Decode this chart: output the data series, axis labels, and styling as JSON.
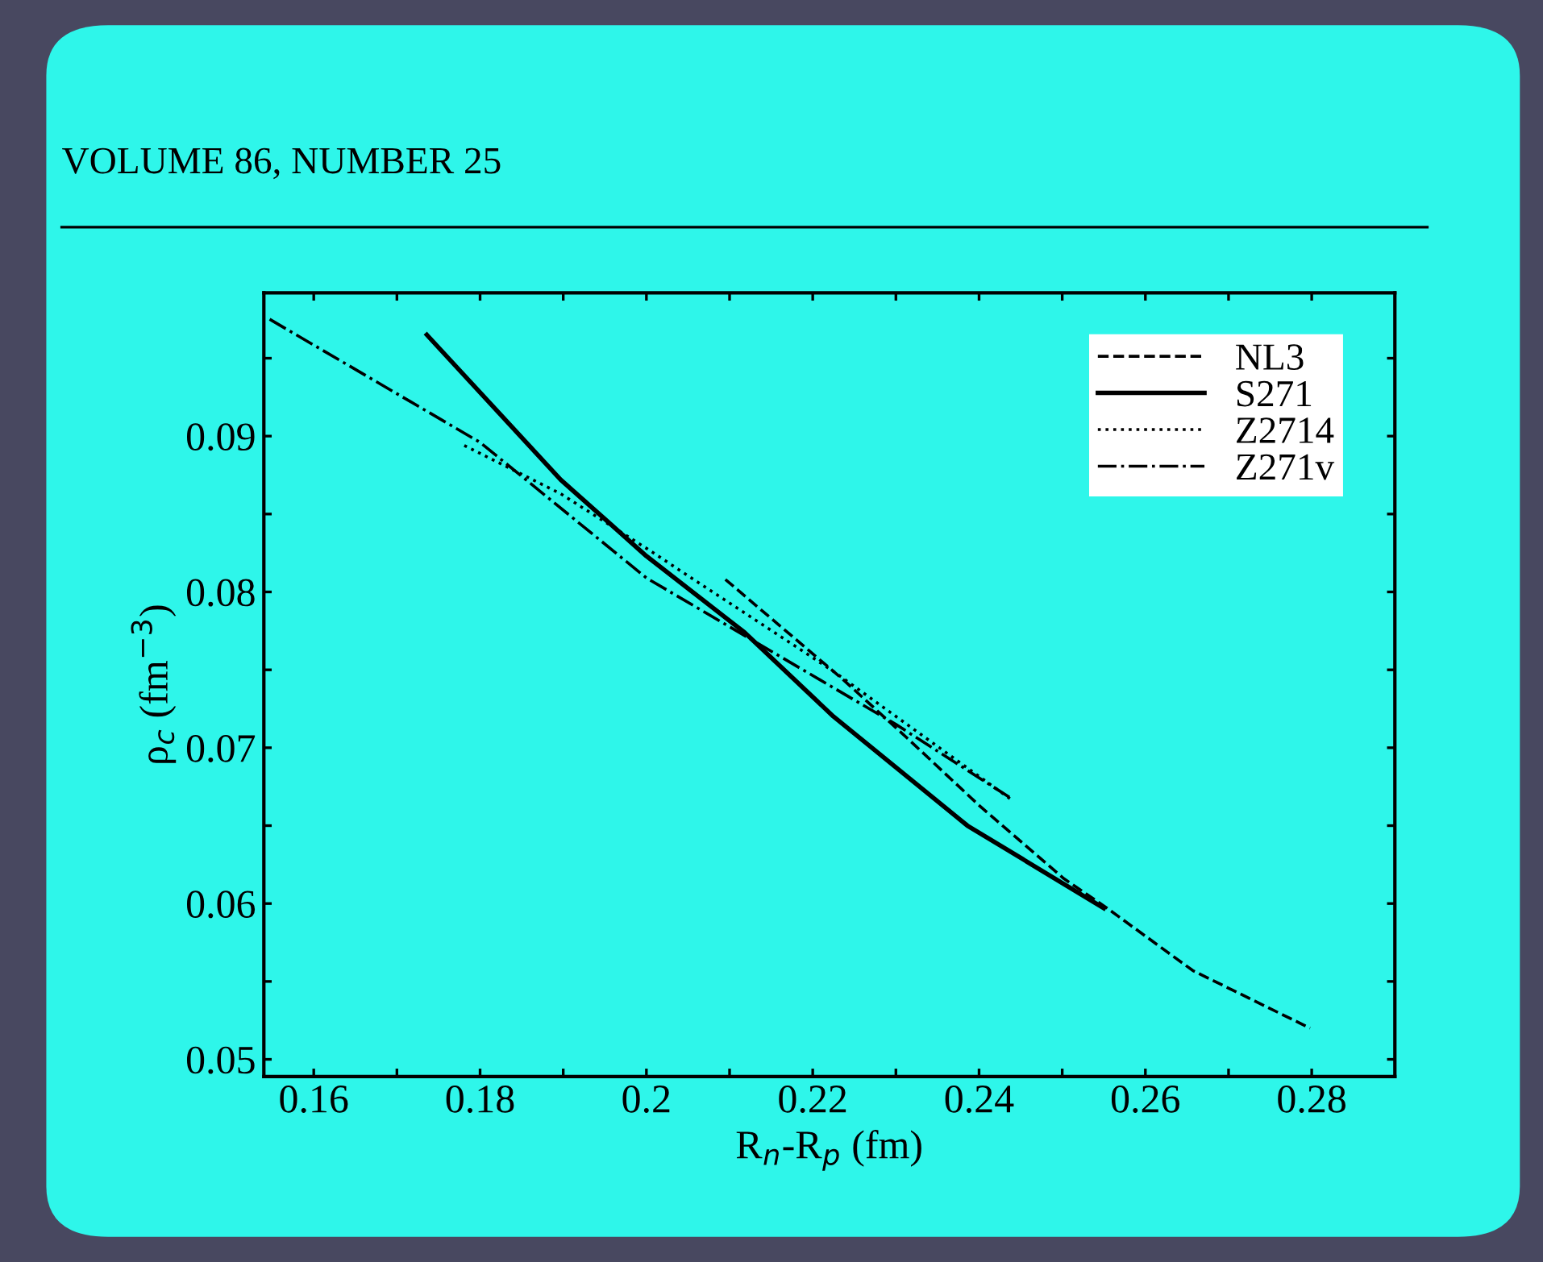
{
  "chart_data": {
    "type": "line",
    "xlabel": "R$_{n}$-R$_{p}$ (fm)",
    "ylabel": "ρ$_{c}$ (fm$^{−3}$)",
    "annotations": [
      "VOLUME 86, NUMBER 25"
    ],
    "xlim": [
      0.154,
      0.29
    ],
    "ylim": [
      0.0489,
      0.0992
    ],
    "xticks": [
      0.16,
      {
        "value": 0.17,
        "label": null
      },
      0.18,
      {
        "value": 0.19,
        "label": null
      },
      0.2,
      {
        "value": 0.21,
        "label": null
      },
      0.22,
      {
        "value": 0.23,
        "label": null
      },
      0.24,
      {
        "value": 0.25,
        "label": null
      },
      0.26,
      {
        "value": 0.27,
        "label": null
      },
      0.28
    ],
    "yticks": [
      0.05,
      {
        "value": 0.055,
        "label": null
      },
      0.06,
      {
        "value": 0.065,
        "label": null
      },
      0.07,
      {
        "value": 0.075,
        "label": null
      },
      0.08,
      {
        "value": 0.085,
        "label": null
      },
      0.09,
      {
        "value": 0.095,
        "label": null
      }
    ],
    "grid": false,
    "legend": "top right",
    "marker": "none",
    "series": [
      {
        "name": "NL3",
        "color": "#000000",
        "line_style": "dashed",
        "x": [
          0.2095,
          0.2236,
          0.2314,
          0.24,
          0.2502,
          0.2554,
          0.2657,
          0.2798
        ],
        "values": [
          0.0808,
          0.0744,
          0.0706,
          0.0663,
          0.0616,
          0.0597,
          0.0557,
          0.052
        ]
      },
      {
        "name": "S271",
        "color": "#000000",
        "line_style": "solid",
        "x": [
          0.1736,
          0.1897,
          0.2,
          0.2118,
          0.2225,
          0.2386,
          0.255
        ],
        "values": [
          0.0965,
          0.0872,
          0.0823,
          0.0774,
          0.072,
          0.065,
          0.0597
        ]
      },
      {
        "name": "Z2714",
        "color": "#000000",
        "line_style": "dotted",
        "x": [
          0.1781,
          0.1897,
          0.2,
          0.2225,
          0.2438
        ],
        "values": [
          0.0894,
          0.0863,
          0.0828,
          0.0749,
          0.0667
        ]
      },
      {
        "name": "Z271v",
        "color": "#000000",
        "line_style": "dashdot",
        "x": [
          0.1547,
          0.18,
          0.2,
          0.2118,
          0.23,
          0.244
        ],
        "values": [
          0.0975,
          0.0896,
          0.0809,
          0.0772,
          0.0715,
          0.0667
        ]
      }
    ]
  }
}
